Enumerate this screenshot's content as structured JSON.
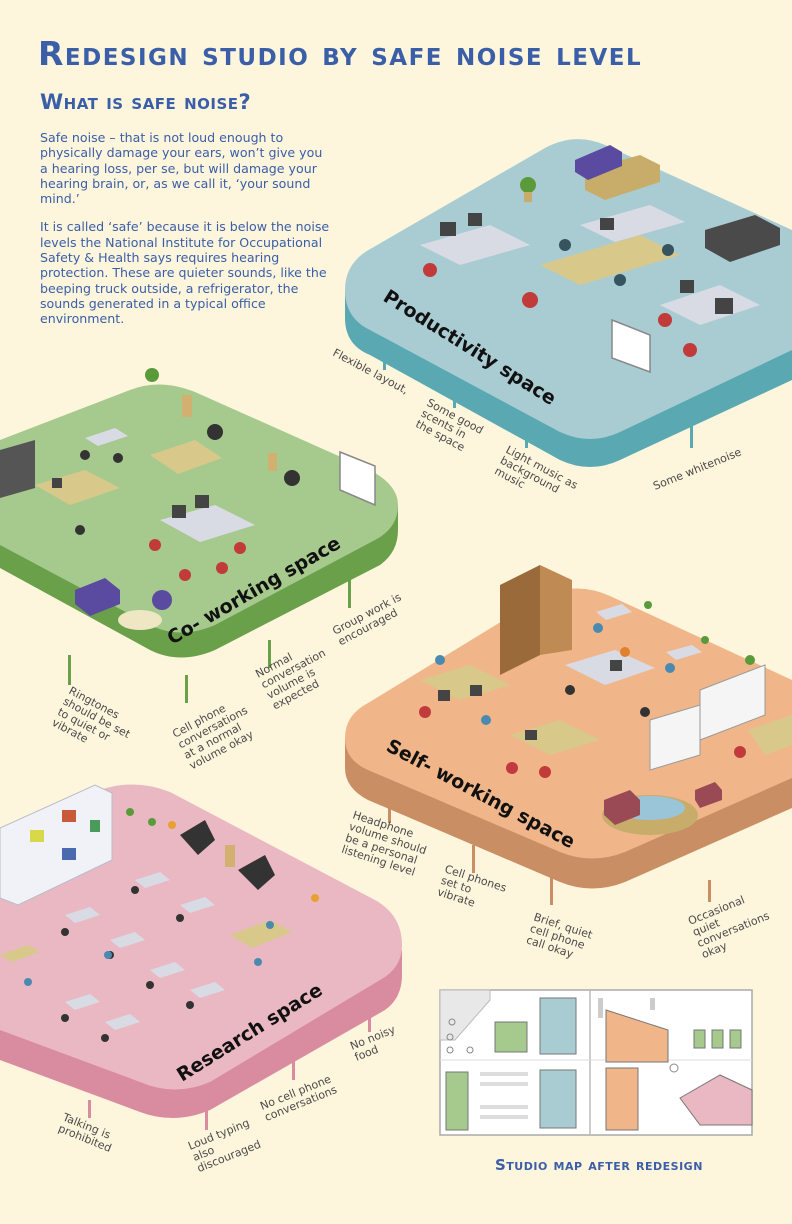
{
  "title": "Redesign studio by safe noise level",
  "subtitle": "What is safe noise?",
  "intro": {
    "p1": "Safe noise – that is not loud enough to physically damage your ears, won’t give you a hearing loss, per se, but will damage your hearing brain, or, as we call it, ‘your sound mind.’",
    "p2": "It is called ‘safe’ because it is below the noise levels the National Institute for Occupational Safety & Health says requires hearing protection. These are quieter sounds, like the beeping truck outside, a refrigerator, the sounds generated in a typical office environment."
  },
  "spaces": {
    "productivity": {
      "label": "Productivity space",
      "color": "#a9ccd3",
      "notes": [
        "Flexible layout,",
        "Some good",
        "scents in",
        "the space",
        "Light music as",
        "background",
        "music",
        "Some whitenoise"
      ]
    },
    "coworking": {
      "label": "Co- working space",
      "color": "#a6c98e",
      "notes": [
        "Ringtones",
        "should be set",
        "to quiet or",
        "vibrate",
        "Cell phone",
        "conversations",
        "at a normal",
        "volume okay",
        "Normal",
        "conversation",
        "volume is",
        "expected",
        "Group work is",
        "encouraged"
      ]
    },
    "selfworking": {
      "label": "Self- working space",
      "color": "#f0b68a",
      "notes": [
        "Headphone",
        "volume should",
        "be a personal",
        "listening level",
        "Cell phones",
        "set to",
        "vibrate",
        "Brief, quiet",
        "cell phone",
        "call okay",
        "Occasional",
        "quiet",
        "conversations",
        "okay"
      ]
    },
    "research": {
      "label": "Research space",
      "color": "#eab8c2",
      "notes": [
        "Talking is",
        "prohibited",
        "Loud typing",
        "also",
        "discouraged",
        "No cell phone",
        "conversations",
        "No noisy",
        "food"
      ]
    }
  },
  "map": {
    "title": "Studio map after redesign"
  }
}
